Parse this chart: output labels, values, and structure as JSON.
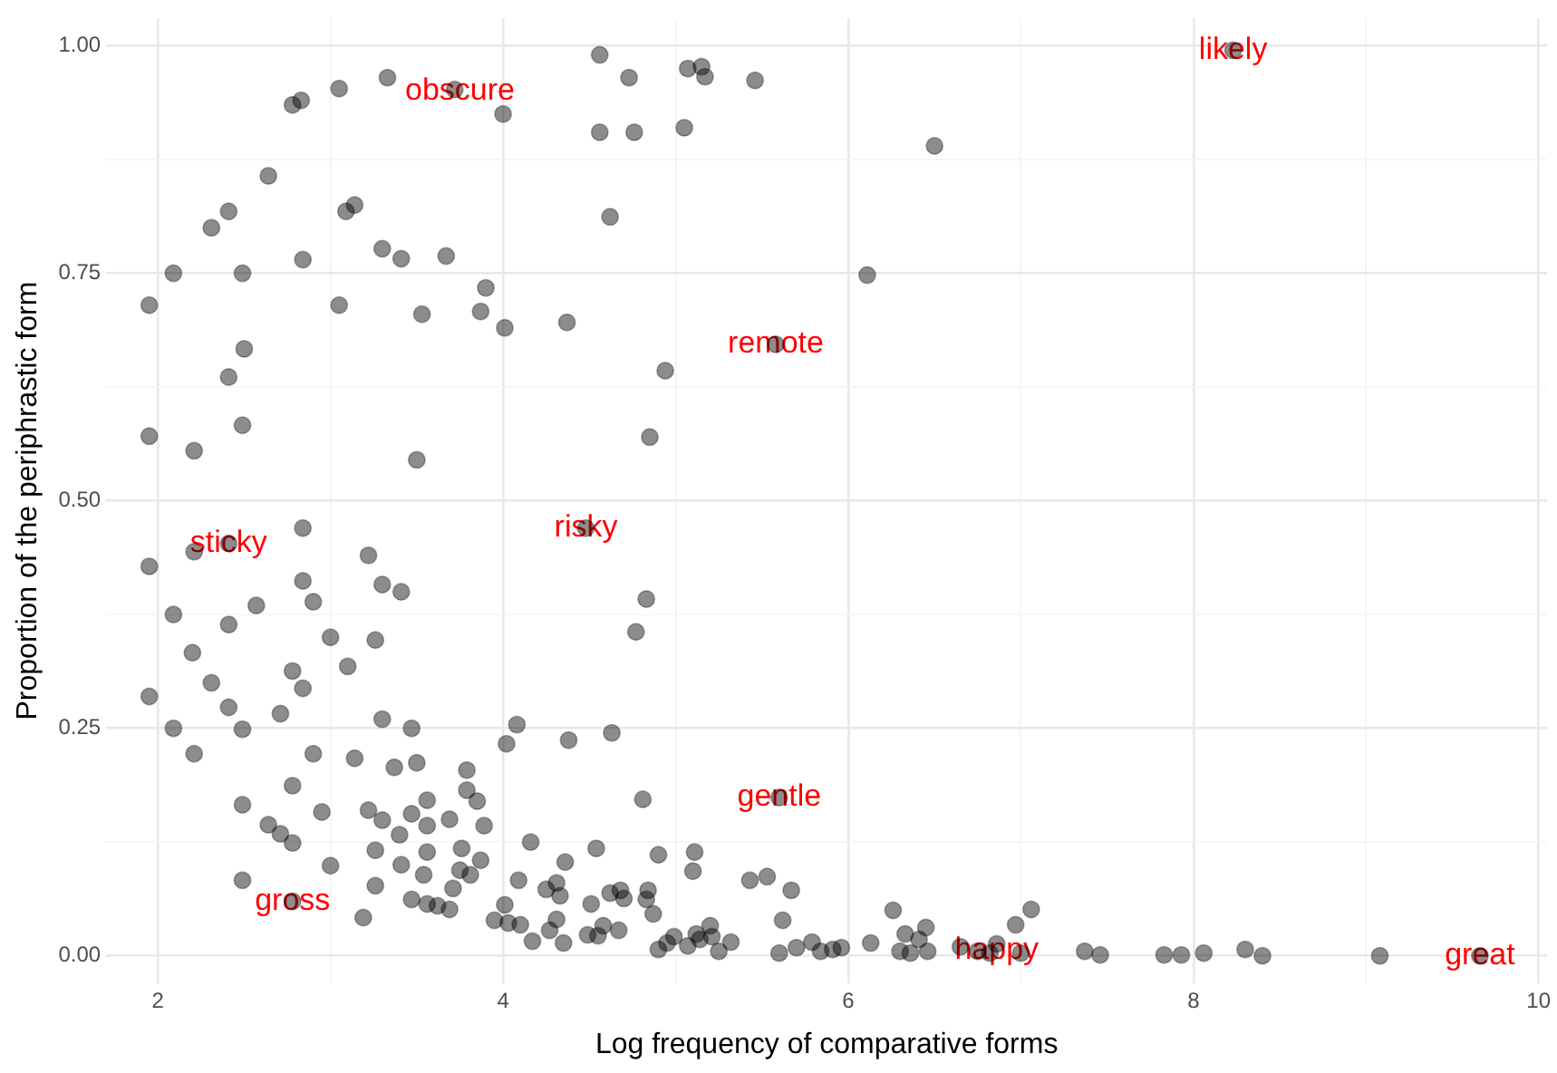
{
  "chart_data": {
    "type": "scatter",
    "xlabel": "Log frequency of comparative forms",
    "ylabel": "Proportion of the periphrastic form",
    "xlim": [
      1.7,
      10.05
    ],
    "ylim": [
      -0.03,
      1.03
    ],
    "xticks": [
      2,
      {
        "value": 3,
        "label": null
      },
      4,
      {
        "value": 5,
        "label": null
      },
      6,
      {
        "value": 7,
        "label": null
      },
      8,
      {
        "value": 9,
        "label": null
      },
      10
    ],
    "yticks": [
      {
        "value": 0,
        "label": "0.00"
      },
      {
        "value": 0.125,
        "label": null
      },
      {
        "value": 0.25,
        "label": "0.25"
      },
      {
        "value": 0.375,
        "label": null
      },
      {
        "value": 0.5,
        "label": "0.50"
      },
      {
        "value": 0.625,
        "label": null
      },
      {
        "value": 0.75,
        "label": "0.75"
      },
      {
        "value": 0.875,
        "label": null
      },
      {
        "value": 1,
        "label": "1.00"
      }
    ],
    "grid": true,
    "marker": "circle",
    "legend": false,
    "series": [
      {
        "color": "#000000",
        "x": [
          2.83,
          2.78,
          3.05,
          3.33,
          3.72,
          4.0,
          4.56,
          4.73,
          4.56,
          4.76,
          5.07,
          5.15,
          5.17,
          5.05,
          5.46,
          6.5,
          8.23,
          1.95,
          2.09,
          2.31,
          2.41,
          2.64,
          2.49,
          2.84,
          3.09,
          3.14,
          3.3,
          3.41,
          3.67,
          3.9,
          3.87,
          4.01,
          4.37,
          3.05,
          3.53,
          2.5,
          2.41,
          1.95,
          2.21,
          2.49,
          3.5,
          4.62,
          4.85,
          6.11,
          5.58,
          4.94,
          2.84,
          1.95,
          2.21,
          2.41,
          2.09,
          2.2,
          2.31,
          1.95,
          2.09,
          2.21,
          2.41,
          2.57,
          2.41,
          2.49,
          2.71,
          2.78,
          2.84,
          2.84,
          2.9,
          3.22,
          3.3,
          3.41,
          3.0,
          3.26,
          3.1,
          3.3,
          3.47,
          2.9,
          2.49,
          2.78,
          2.64,
          2.71,
          2.78,
          2.95,
          3.14,
          3.37,
          3.5,
          3.79,
          3.79,
          3.85,
          3.56,
          3.22,
          3.3,
          3.47,
          3.69,
          3.89,
          3.56,
          3.4,
          3.26,
          3.56,
          3.76,
          3.87,
          3.75,
          3.81,
          3.54,
          3.41,
          3.0,
          3.26,
          3.71,
          2.49,
          2.78,
          3.47,
          3.56,
          3.62,
          3.69,
          3.19,
          4.02,
          4.08,
          4.38,
          4.63,
          4.83,
          4.77,
          4.81,
          4.16,
          4.36,
          4.54,
          4.09,
          4.25,
          4.31,
          4.33,
          4.51,
          4.62,
          4.68,
          4.7,
          4.84,
          4.83,
          4.01,
          3.95,
          4.03,
          4.1,
          4.31,
          4.27,
          4.17,
          4.35,
          4.49,
          4.55,
          4.58,
          4.67,
          4.87,
          4.9,
          4.9,
          5.11,
          5.1,
          5.43,
          5.53,
          5.67,
          5.6,
          5.62,
          4.95,
          4.99,
          5.07,
          5.12,
          5.14,
          5.2,
          5.21,
          5.25,
          5.32,
          5.6,
          5.7,
          5.79,
          5.84,
          5.91,
          5.96,
          6.13,
          6.26,
          6.33,
          6.3,
          6.36,
          6.41,
          6.45,
          6.46,
          6.65,
          6.75,
          6.82,
          6.86,
          6.97,
          7.06,
          7.0,
          7.37,
          7.46,
          7.83,
          7.93,
          8.06,
          8.3,
          8.4,
          9.08,
          9.66,
          4.48
        ],
        "values": [
          0.94,
          0.935,
          0.953,
          0.965,
          0.952,
          0.925,
          0.99,
          0.965,
          0.905,
          0.905,
          0.975,
          0.977,
          0.966,
          0.91,
          0.962,
          0.89,
          0.995,
          0.715,
          0.75,
          0.8,
          0.818,
          0.857,
          0.75,
          0.765,
          0.818,
          0.825,
          0.777,
          0.766,
          0.769,
          0.734,
          0.708,
          0.69,
          0.696,
          0.715,
          0.705,
          0.667,
          0.636,
          0.571,
          0.555,
          0.583,
          0.545,
          0.812,
          0.57,
          0.748,
          0.672,
          0.643,
          0.47,
          0.428,
          0.444,
          0.453,
          0.375,
          0.333,
          0.3,
          0.285,
          0.25,
          0.222,
          0.364,
          0.385,
          0.273,
          0.249,
          0.266,
          0.313,
          0.294,
          0.412,
          0.389,
          0.44,
          0.408,
          0.4,
          0.35,
          0.347,
          0.318,
          0.26,
          0.25,
          0.222,
          0.166,
          0.187,
          0.144,
          0.134,
          0.124,
          0.158,
          0.217,
          0.207,
          0.212,
          0.204,
          0.182,
          0.17,
          0.171,
          0.16,
          0.149,
          0.156,
          0.15,
          0.143,
          0.143,
          0.133,
          0.116,
          0.114,
          0.118,
          0.105,
          0.094,
          0.089,
          0.089,
          0.1,
          0.099,
          0.077,
          0.074,
          0.083,
          0.06,
          0.062,
          0.057,
          0.055,
          0.051,
          0.042,
          0.233,
          0.254,
          0.237,
          0.245,
          0.392,
          0.356,
          0.172,
          0.125,
          0.103,
          0.118,
          0.083,
          0.073,
          0.08,
          0.066,
          0.057,
          0.069,
          0.072,
          0.063,
          0.072,
          0.062,
          0.056,
          0.039,
          0.036,
          0.034,
          0.04,
          0.028,
          0.016,
          0.014,
          0.023,
          0.022,
          0.033,
          0.028,
          0.046,
          0.007,
          0.111,
          0.114,
          0.093,
          0.083,
          0.087,
          0.072,
          0.174,
          0.039,
          0.014,
          0.021,
          0.011,
          0.024,
          0.018,
          0.033,
          0.021,
          0.005,
          0.015,
          0.003,
          0.009,
          0.015,
          0.005,
          0.007,
          0.009,
          0.014,
          0.05,
          0.024,
          0.005,
          0.003,
          0.018,
          0.031,
          0.005,
          0.01,
          0.005,
          0.003,
          0.013,
          0.034,
          0.051,
          0.003,
          0.005,
          0.001,
          0.001,
          0.001,
          0.003,
          0.007,
          0,
          0,
          0,
          0.47
        ]
      }
    ],
    "annotations": [
      {
        "text": "obscure",
        "x": 3.75,
        "y": 0.95
      },
      {
        "text": "likely",
        "x": 8.23,
        "y": 0.995
      },
      {
        "text": "remote",
        "x": 5.58,
        "y": 0.672
      },
      {
        "text": "risky",
        "x": 4.48,
        "y": 0.47
      },
      {
        "text": "sticky",
        "x": 2.41,
        "y": 0.453
      },
      {
        "text": "gentle",
        "x": 5.6,
        "y": 0.174
      },
      {
        "text": "gross",
        "x": 2.78,
        "y": 0.06
      },
      {
        "text": "happy",
        "x": 6.86,
        "y": 0.006
      },
      {
        "text": "great",
        "x": 9.66,
        "y": 0
      }
    ]
  }
}
